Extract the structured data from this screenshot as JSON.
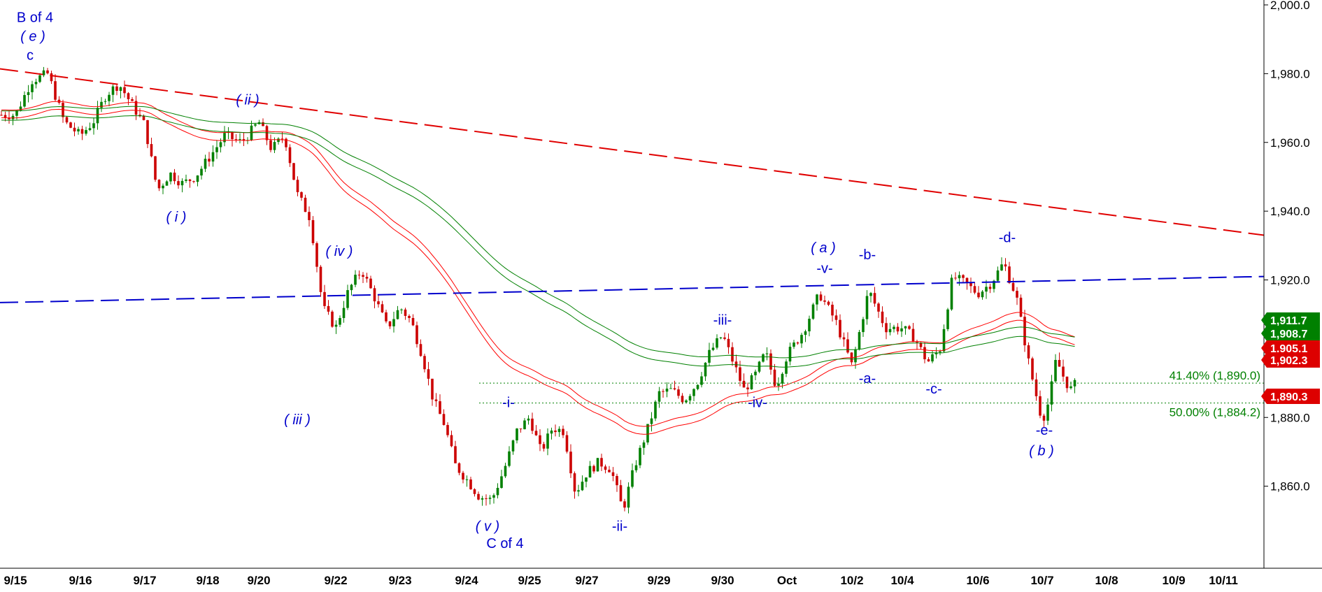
{
  "chart_data": {
    "type": "candlestick",
    "title": "",
    "xlabel": "",
    "ylabel": "",
    "ylim": [
      1838,
      2002
    ],
    "y_ticks": [
      {
        "value": 1860,
        "label": "1,860.0"
      },
      {
        "value": 1880,
        "label": "1,880.0"
      },
      {
        "value": 1900,
        "label": "1,900.0"
      },
      {
        "value": 1920,
        "label": "1,920.0"
      },
      {
        "value": 1940,
        "label": "1,940.0"
      },
      {
        "value": 1960,
        "label": "1,960.0"
      },
      {
        "value": 1980,
        "label": "1,980.0"
      },
      {
        "value": 2000,
        "label": "2,000.0"
      }
    ],
    "x_tick_labels": [
      "9/15",
      "9/16",
      "9/17",
      "9/18",
      "9/20",
      "9/22",
      "9/23",
      "9/24",
      "9/25",
      "9/27",
      "9/29",
      "9/30",
      "Oct",
      "10/2",
      "10/4",
      "10/6",
      "10/7",
      "10/8",
      "10/9",
      "10/11"
    ],
    "anchors": [
      [
        "9/15",
        1968
      ],
      [
        "9/15",
        1978
      ],
      [
        "9/15",
        1980
      ],
      [
        "9/15",
        1966
      ],
      [
        "9/16",
        1962
      ],
      [
        "9/16",
        1966
      ],
      [
        "9/16",
        1974
      ],
      [
        "9/16",
        1977
      ],
      [
        "9/16",
        1971
      ],
      [
        "9/17",
        1965
      ],
      [
        "9/17",
        1946
      ],
      [
        "9/17",
        1951
      ],
      [
        "9/17",
        1948
      ],
      [
        "9/17",
        1950
      ],
      [
        "9/18",
        1955
      ],
      [
        "9/18",
        1962
      ],
      [
        "9/18",
        1960
      ],
      [
        "9/20",
        1966
      ],
      [
        "9/20",
        1958
      ],
      [
        "9/20",
        1962
      ],
      [
        "9/20",
        1945
      ],
      [
        "9/20",
        1938
      ],
      [
        "9/20",
        1912
      ],
      [
        "9/22",
        1906
      ],
      [
        "9/22",
        1917
      ],
      [
        "9/22",
        1923
      ],
      [
        "9/22",
        1915
      ],
      [
        "9/22",
        1906
      ],
      [
        "9/23",
        1912
      ],
      [
        "9/23",
        1908
      ],
      [
        "9/23",
        1898
      ],
      [
        "9/23",
        1885
      ],
      [
        "9/23",
        1878
      ],
      [
        "9/23",
        1866
      ],
      [
        "9/24",
        1862
      ],
      [
        "9/24",
        1857
      ],
      [
        "9/24",
        1856
      ],
      [
        "9/24",
        1865
      ],
      [
        "9/24",
        1876
      ],
      [
        "9/25",
        1880
      ],
      [
        "9/25",
        1870
      ],
      [
        "9/25",
        1877
      ],
      [
        "9/25",
        1876
      ],
      [
        "9/25",
        1858
      ],
      [
        "9/27",
        1864
      ],
      [
        "9/27",
        1867
      ],
      [
        "9/27",
        1865
      ],
      [
        "9/27",
        1853
      ],
      [
        "9/27",
        1866
      ],
      [
        "9/27",
        1876
      ],
      [
        "9/29",
        1887
      ],
      [
        "9/29",
        1888
      ],
      [
        "9/29",
        1885
      ],
      [
        "9/29",
        1890
      ],
      [
        "9/29",
        1899
      ],
      [
        "9/30",
        1904
      ],
      [
        "9/30",
        1896
      ],
      [
        "9/30",
        1888
      ],
      [
        "9/30",
        1892
      ],
      [
        "9/30",
        1899
      ],
      [
        "9/30",
        1889
      ],
      [
        "Oct",
        1898
      ],
      [
        "Oct",
        1905
      ],
      [
        "Oct",
        1916
      ],
      [
        "Oct",
        1908
      ],
      [
        "10/2",
        1895
      ],
      [
        "10/2",
        1917
      ],
      [
        "10/2",
        1906
      ],
      [
        "10/4",
        1906
      ],
      [
        "10/4",
        1903
      ],
      [
        "10/4",
        1896
      ],
      [
        "10/4",
        1900
      ],
      [
        "10/4",
        1921
      ],
      [
        "10/4",
        1919
      ],
      [
        "10/6",
        1916
      ],
      [
        "10/6",
        1919
      ],
      [
        "10/6",
        1925
      ],
      [
        "10/6",
        1915
      ],
      [
        "10/6",
        1895
      ],
      [
        "10/7",
        1879
      ],
      [
        "10/7",
        1885
      ],
      [
        "10/7",
        1897
      ],
      [
        "10/7",
        1892
      ],
      [
        "10/7",
        1888
      ],
      [
        "10/7",
        1890.3
      ]
    ],
    "series": [
      {
        "name": "",
        "kind": "candlestick",
        "color": "#008000",
        "note_color_down": "#cc0000"
      },
      {
        "name": "",
        "kind": "moving-average",
        "color": "#ff0000"
      },
      {
        "name": "",
        "kind": "moving-average",
        "color": "#ff0000"
      },
      {
        "name": "",
        "kind": "moving-average",
        "color": "#008000"
      },
      {
        "name": "",
        "kind": "moving-average",
        "color": "#008000"
      }
    ],
    "trendlines": [
      {
        "color": "#e00000",
        "style": "dashed",
        "from": [
          "9/15",
          1981
        ],
        "to": [
          "10/11",
          1933
        ]
      },
      {
        "color": "#0000cc",
        "style": "dashed",
        "from": [
          "9/15",
          1913
        ],
        "to": [
          "10/11",
          1921
        ]
      }
    ],
    "fib_levels": [
      {
        "value": 1890.0,
        "label": "41.40% (1,890.0)"
      },
      {
        "value": 1884.2,
        "label": "50.00% (1,884.2)"
      }
    ],
    "price_badges": [
      {
        "value": 1911.7,
        "label": "1,911.7",
        "color": "#008000"
      },
      {
        "value": 1908.7,
        "label": "1,908.7",
        "color": "#008000"
      },
      {
        "value": 1905.1,
        "label": "1,905.1",
        "color": "#dd0000"
      },
      {
        "value": 1902.3,
        "label": "1,902.3",
        "color": "#dd0000"
      },
      {
        "value": 1890.3,
        "label": "1,890.3",
        "color": "#dd0000"
      }
    ],
    "annotations": [
      {
        "text": "B of 4",
        "x": "9/15",
        "y": 1995
      },
      {
        "text": "( e )",
        "x": "9/15",
        "y": 1989.5
      },
      {
        "text": "c",
        "x": "9/15",
        "y": 1984
      },
      {
        "text": "( ii )",
        "x": "9/20",
        "y": 1971
      },
      {
        "text": "( i )",
        "x": "9/17",
        "y": 1937
      },
      {
        "text": "( iv )",
        "x": "9/22",
        "y": 1927
      },
      {
        "text": "( iii )",
        "x": "9/22",
        "y": 1878
      },
      {
        "text": "-i-",
        "x": "9/25",
        "y": 1883
      },
      {
        "text": "( v )",
        "x": "9/24",
        "y": 1847
      },
      {
        "text": "C of 4",
        "x": "9/24",
        "y": 1842
      },
      {
        "text": "-ii-",
        "x": "9/27",
        "y": 1847
      },
      {
        "text": "-iii-",
        "x": "9/30",
        "y": 1907
      },
      {
        "text": "-iv-",
        "x": "9/30",
        "y": 1883
      },
      {
        "text": "( a )",
        "x": "Oct",
        "y": 1928
      },
      {
        "text": "-v-",
        "x": "Oct",
        "y": 1922
      },
      {
        "text": "-b-",
        "x": "10/2",
        "y": 1926
      },
      {
        "text": "-a-",
        "x": "10/2",
        "y": 1890
      },
      {
        "text": "-c-",
        "x": "10/4",
        "y": 1887
      },
      {
        "text": "-d-",
        "x": "10/6",
        "y": 1931
      },
      {
        "text": "-e-",
        "x": "10/7",
        "y": 1875
      },
      {
        "text": "( b )",
        "x": "10/7",
        "y": 1869
      }
    ],
    "grid": false
  }
}
